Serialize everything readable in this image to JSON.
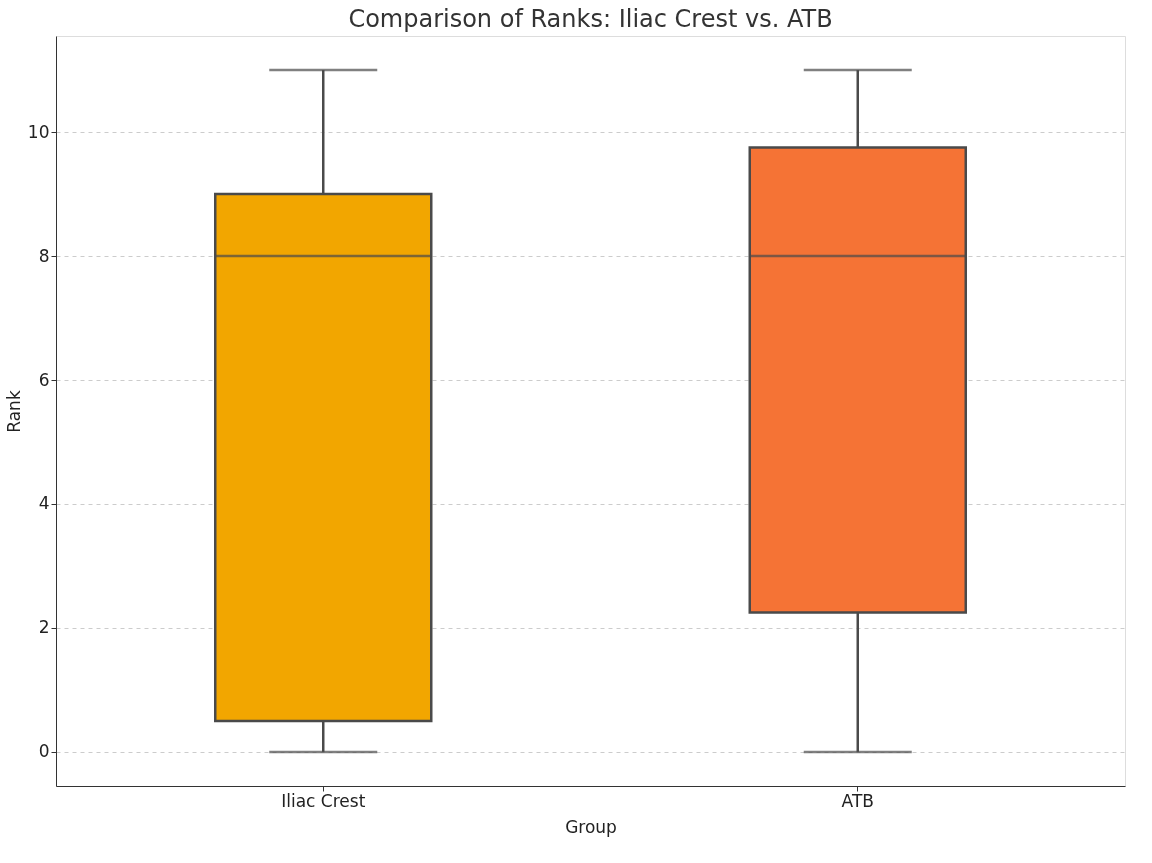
{
  "chart_data": {
    "type": "box",
    "title": "Comparison of Ranks: Iliac Crest vs. ATB",
    "xlabel": "Group",
    "ylabel": "Rank",
    "categories": [
      "Iliac Crest",
      "ATB"
    ],
    "colors": [
      "#f2a600",
      "#f57335"
    ],
    "boxes": [
      {
        "low": 0,
        "q1": 0.5,
        "median": 8,
        "q3": 9,
        "high": 11
      },
      {
        "low": 0,
        "q1": 2.25,
        "median": 8,
        "q3": 9.75,
        "high": 11
      }
    ],
    "ylim": [
      -0.55,
      11.55
    ],
    "yticks": [
      0,
      2,
      4,
      6,
      8,
      10
    ],
    "grid": "y",
    "legend": false
  }
}
